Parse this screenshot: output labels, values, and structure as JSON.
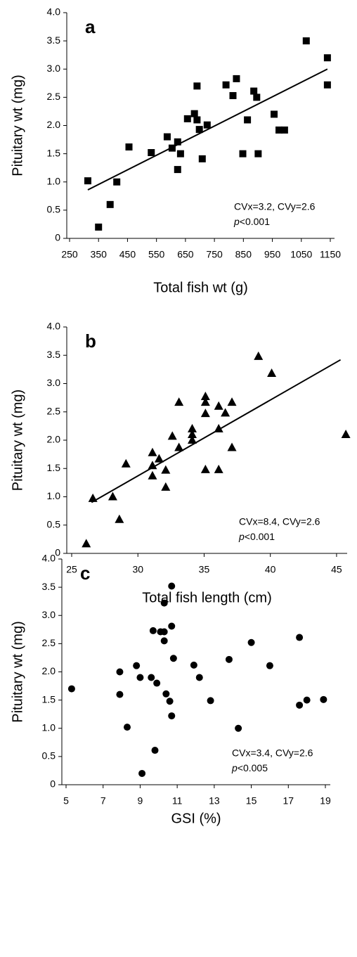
{
  "chart_data": [
    {
      "type": "scatter",
      "panel_label": "a",
      "x_label": "Total fish wt (g)",
      "y_label": "Pituitary wt (mg)",
      "marker": "square",
      "color": "#000000",
      "x": [
        313,
        350,
        390,
        413,
        455,
        532,
        587,
        604,
        623,
        623,
        633,
        657,
        681,
        690,
        690,
        698,
        708,
        725,
        790,
        814,
        826,
        848,
        864,
        886,
        896,
        901,
        956,
        973,
        992,
        1067,
        1140,
        1140
      ],
      "y": [
        1.02,
        0.2,
        0.6,
        1.0,
        1.62,
        1.52,
        1.8,
        1.6,
        1.71,
        1.22,
        1.5,
        2.12,
        2.21,
        2.7,
        2.1,
        1.93,
        1.41,
        2.01,
        2.72,
        2.53,
        2.83,
        1.5,
        2.1,
        2.61,
        2.5,
        1.5,
        2.2,
        1.92,
        1.92,
        3.5,
        2.72,
        3.2
      ],
      "trend": {
        "x": [
          313,
          1140
        ],
        "y": [
          0.86,
          3.0
        ]
      },
      "annotations": [
        "CVx=3.2, CVy=2.6",
        "p<0.001"
      ],
      "xlim": [
        250,
        1150
      ],
      "ylim": [
        0,
        4
      ],
      "xticks": [
        250,
        350,
        450,
        550,
        650,
        750,
        850,
        950,
        1050,
        1150
      ],
      "yticks": [
        0,
        0.5,
        {
          "value": 1,
          "label": "1.0"
        },
        1.5,
        {
          "value": 2,
          "label": "2.0"
        },
        2.5,
        {
          "value": 3,
          "label": "3.0"
        },
        3.5,
        {
          "value": 4,
          "label": "4.0"
        }
      ]
    },
    {
      "type": "scatter",
      "panel_label": "b",
      "x_label": "Total fish length (cm)",
      "y_label": "Pituitary wt (mg)",
      "marker": "triangle",
      "color": "#000000",
      "x": [
        26.1,
        26.6,
        28.1,
        28.6,
        29.1,
        31.1,
        31.1,
        31.1,
        31.6,
        32.1,
        32.1,
        32.6,
        33.1,
        33.1,
        34.1,
        34.1,
        34.1,
        35.1,
        35.1,
        35.1,
        35.1,
        36.1,
        36.1,
        36.1,
        36.6,
        37.1,
        37.1,
        39.1,
        40.1,
        45.7
      ],
      "y": [
        0.17,
        0.97,
        1.0,
        0.6,
        1.58,
        1.78,
        1.55,
        1.37,
        1.67,
        1.47,
        1.17,
        2.07,
        1.87,
        2.67,
        2.2,
        2.1,
        2.0,
        2.77,
        2.67,
        2.47,
        1.48,
        2.6,
        2.2,
        1.48,
        2.48,
        2.67,
        1.87,
        3.48,
        3.18,
        2.1
      ],
      "trend": {
        "x": [
          26.5,
          45.3
        ],
        "y": [
          0.9,
          3.42
        ]
      },
      "annotations": [
        "CVx=8.4, CVy=2.6",
        "p<0.001"
      ],
      "xlim": [
        25,
        45.8
      ],
      "ylim": [
        0,
        4
      ],
      "xticks": [
        25,
        30,
        35,
        40,
        45
      ],
      "yticks": [
        0,
        0.5,
        {
          "value": 1,
          "label": "1.0"
        },
        1.5,
        {
          "value": 2,
          "label": "2.0"
        },
        2.5,
        {
          "value": 3,
          "label": "3.0"
        },
        3.5,
        {
          "value": 4,
          "label": "4.0"
        }
      ]
    },
    {
      "type": "scatter",
      "panel_label": "c",
      "x_label": "GSI (%)",
      "y_label": "Pituitary wt (mg)",
      "marker": "circle",
      "color": "#000000",
      "x": [
        5.3,
        7.9,
        7.9,
        8.3,
        8.8,
        9.0,
        9.1,
        9.6,
        9.7,
        9.8,
        9.9,
        10.1,
        10.3,
        10.3,
        10.3,
        10.4,
        10.6,
        10.7,
        10.7,
        10.7,
        10.8,
        11.9,
        12.2,
        12.8,
        13.8,
        14.3,
        15.0,
        16.0,
        17.6,
        17.6,
        18.0,
        18.9
      ],
      "y": [
        1.7,
        2.0,
        1.6,
        1.02,
        2.11,
        1.9,
        0.2,
        1.9,
        2.73,
        0.61,
        1.8,
        2.71,
        3.22,
        2.55,
        2.71,
        1.61,
        1.48,
        3.52,
        2.81,
        1.22,
        2.24,
        2.12,
        1.9,
        1.49,
        2.22,
        1.0,
        2.52,
        2.11,
        2.61,
        1.41,
        1.5,
        1.51
      ],
      "annotations": [
        "CVx=3.4, CVy=2.6",
        "p<0.005"
      ],
      "xlim": [
        5,
        19
      ],
      "ylim": [
        0,
        4
      ],
      "xticks": [
        5,
        7,
        9,
        11,
        13,
        15,
        17,
        19
      ],
      "yticks": [
        0,
        0.5,
        {
          "value": 1,
          "label": "1.0"
        },
        1.5,
        {
          "value": 2,
          "label": "2.0"
        },
        2.5,
        {
          "value": 3,
          "label": "3.0"
        },
        3.5,
        {
          "value": 4,
          "label": "4.0"
        }
      ]
    }
  ]
}
